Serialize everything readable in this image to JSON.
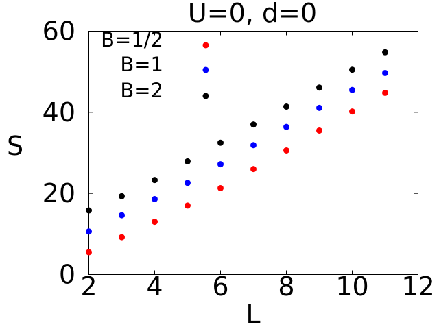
{
  "chart_data": {
    "type": "scatter",
    "title": "U=0, d=0",
    "xlabel": "L",
    "ylabel": "S",
    "xlim": [
      2,
      12
    ],
    "ylim": [
      0,
      60
    ],
    "xticks": [
      2,
      4,
      6,
      8,
      10,
      12
    ],
    "yticks": [
      0,
      20,
      40,
      60
    ],
    "xtick_labels": [
      "2",
      "4",
      "6",
      "8",
      "10",
      "12"
    ],
    "ytick_labels": [
      "0",
      "20",
      "40",
      "60"
    ],
    "grid": false,
    "legend_position": "top-left",
    "x": [
      2,
      3,
      4,
      5,
      6,
      7,
      8,
      9,
      10,
      11
    ],
    "series": [
      {
        "name": "B=1/2",
        "color": "#ff0000",
        "values": [
          5.5,
          9.2,
          13.0,
          17.0,
          21.3,
          26.0,
          30.6,
          35.5,
          40.2,
          44.8
        ]
      },
      {
        "name": "B=1",
        "color": "#0000ff",
        "values": [
          10.6,
          14.6,
          18.6,
          22.6,
          27.2,
          31.9,
          36.4,
          41.1,
          45.5,
          49.7
        ]
      },
      {
        "name": "B=2",
        "color": "#000000",
        "values": [
          15.8,
          19.3,
          23.3,
          27.9,
          32.5,
          37.0,
          41.4,
          46.1,
          50.5,
          54.8
        ]
      }
    ]
  }
}
